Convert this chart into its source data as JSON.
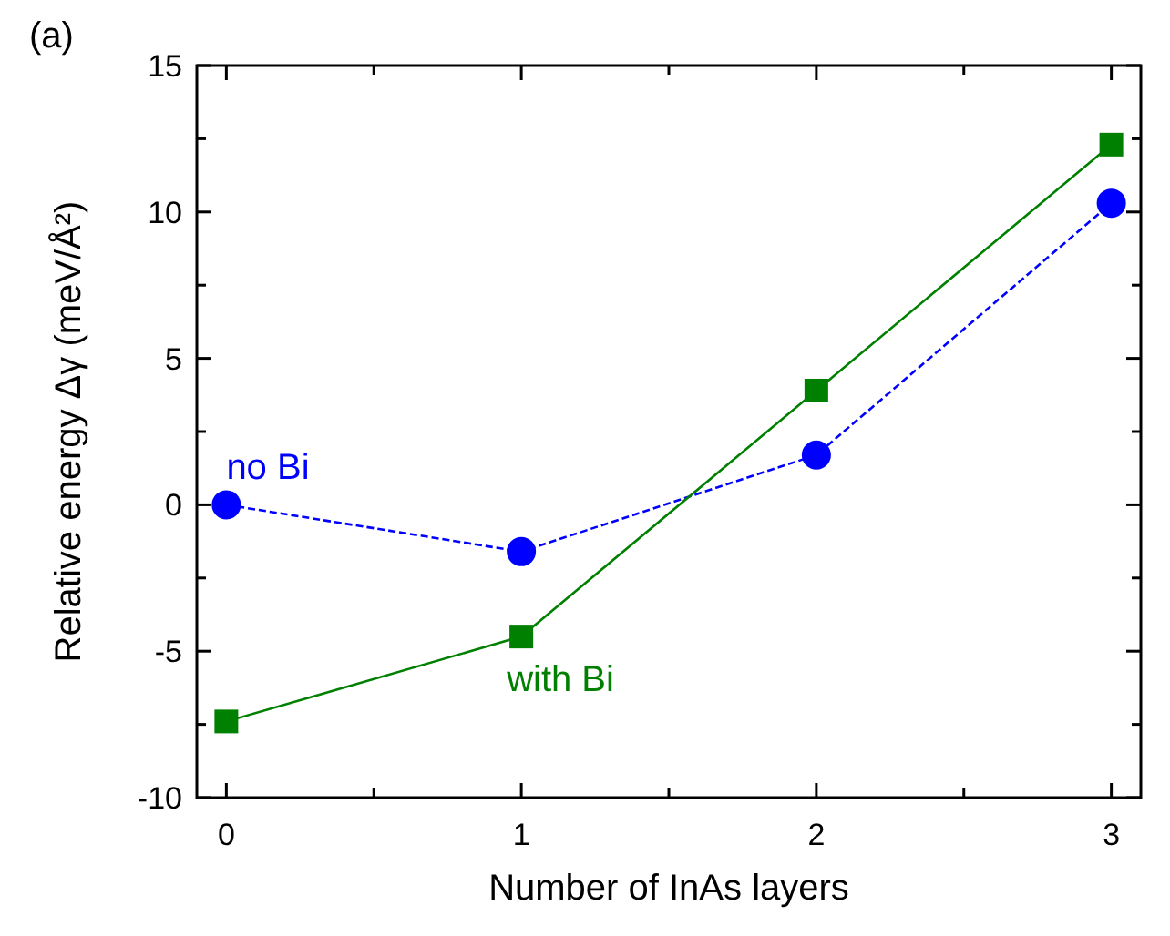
{
  "chart_data": {
    "type": "line",
    "xlabel": "Number of InAs layers",
    "ylabel": "Relative energy Δγ (meV/Å²)",
    "annotations": [
      "(a)"
    ],
    "x": [
      0,
      1,
      2,
      3
    ],
    "xlim": [
      -0.1,
      3.1
    ],
    "ylim": [
      -10,
      15
    ],
    "xticks": [
      0,
      {
        "value": 0.5,
        "label": null
      },
      1,
      {
        "value": 1.5,
        "label": null
      },
      2,
      {
        "value": 2.5,
        "label": null
      },
      3
    ],
    "yticks": [
      -10,
      {
        "value": -7.5,
        "label": null
      },
      -5,
      {
        "value": -2.5,
        "label": null
      },
      0,
      {
        "value": 2.5,
        "label": null
      },
      5,
      {
        "value": 7.5,
        "label": null
      },
      10,
      {
        "value": 12.5,
        "label": null
      },
      15
    ],
    "series": [
      {
        "name": "no Bi",
        "color": "#0000ff",
        "values": [
          0,
          -1.6,
          1.7,
          10.3
        ],
        "marker": "circle",
        "line_style": "dashed"
      },
      {
        "name": "with Bi",
        "color": "#008000",
        "values": [
          -7.4,
          -4.5,
          3.9,
          12.3
        ],
        "marker": "square",
        "line_style": "solid"
      }
    ]
  }
}
